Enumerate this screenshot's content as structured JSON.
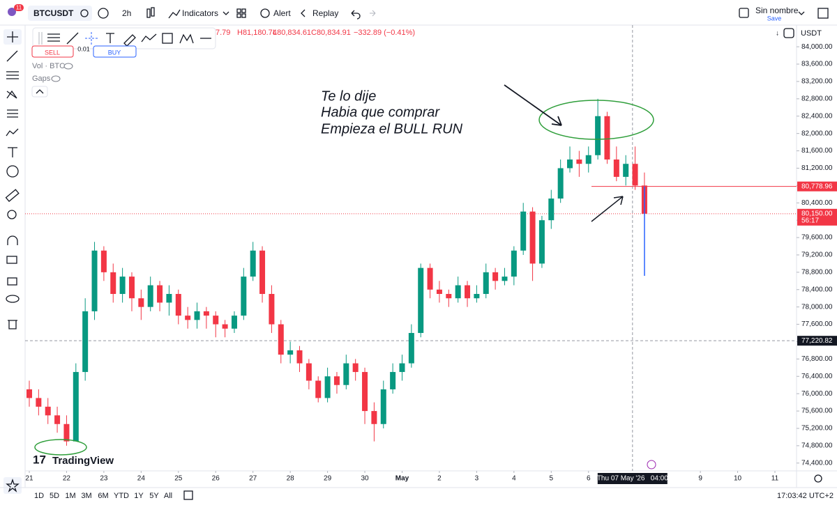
{
  "toolbar": {
    "badge": "11",
    "symbol": "BTCUSDT",
    "interval": "2h",
    "indicators": "Indicators",
    "alert": "Alert",
    "replay": "Replay",
    "layout_name": "Sin nombre",
    "save": "Save",
    "currency": "USDT"
  },
  "trade": {
    "sell": "SELL",
    "buy": "BUY",
    "qty": "0.01"
  },
  "legend": {
    "ohlc": "7.79",
    "high": "H81,180.74",
    "low": "L80,834.61",
    "close": "C80,834.91",
    "change": "−332.89 (−0.41%)",
    "volume": "Vol · BTC",
    "gaps": "Gaps"
  },
  "watermark": "TradingView",
  "chart_data": {
    "type": "candlestick",
    "annotations": [
      "Te lo dije",
      "Habia que comprar",
      "Empieza el BULL RUN"
    ],
    "x": [
      0,
      0.25,
      0.5,
      0.75,
      1,
      1.25,
      1.5,
      1.75,
      2,
      2.25,
      2.5,
      2.75,
      3,
      3.25,
      3.5,
      3.75,
      4,
      4.25,
      4.5,
      4.75,
      5,
      5.25,
      5.5,
      5.75,
      6,
      6.25,
      6.5,
      6.75,
      7,
      7.25,
      7.5,
      7.75,
      8,
      8.25,
      8.5,
      8.75,
      9,
      9.25,
      9.5,
      9.75,
      10,
      10.25,
      10.5,
      10.75,
      11,
      11.25,
      11.5,
      11.75,
      12,
      12.25,
      12.5,
      12.75,
      13,
      13.25,
      13.5,
      13.75,
      14,
      14.25,
      14.5,
      14.75,
      15,
      15.25,
      15.5,
      15.75,
      16,
      16.25,
      16.5
    ],
    "candles": [
      [
        76100,
        76300,
        75700,
        75900
      ],
      [
        75900,
        76100,
        75500,
        75700
      ],
      [
        75700,
        75900,
        75300,
        75500
      ],
      [
        75500,
        75700,
        75100,
        75300
      ],
      [
        75300,
        75500,
        74800,
        74900
      ],
      [
        74900,
        76700,
        74900,
        76500
      ],
      [
        76500,
        78200,
        76300,
        77900
      ],
      [
        77900,
        79500,
        77700,
        79300
      ],
      [
        79300,
        79400,
        78600,
        78800
      ],
      [
        78800,
        79000,
        78100,
        78300
      ],
      [
        78300,
        78900,
        78100,
        78700
      ],
      [
        78700,
        78800,
        77900,
        78200
      ],
      [
        78200,
        78400,
        77700,
        78000
      ],
      [
        78000,
        78700,
        77900,
        78500
      ],
      [
        78500,
        78600,
        77900,
        78100
      ],
      [
        78100,
        78500,
        77800,
        78300
      ],
      [
        78300,
        78400,
        77600,
        77800
      ],
      [
        77800,
        78000,
        77500,
        77700
      ],
      [
        77700,
        78100,
        77500,
        77900
      ],
      [
        77900,
        78000,
        77500,
        77800
      ],
      [
        77800,
        77900,
        77300,
        77600
      ],
      [
        77600,
        77700,
        77300,
        77500
      ],
      [
        77500,
        77900,
        77400,
        77800
      ],
      [
        77800,
        78900,
        77700,
        78700
      ],
      [
        78700,
        79500,
        78600,
        79300
      ],
      [
        79300,
        79400,
        78100,
        78300
      ],
      [
        78300,
        78500,
        77400,
        77600
      ],
      [
        77600,
        77700,
        76700,
        76900
      ],
      [
        76900,
        77200,
        76700,
        77000
      ],
      [
        77000,
        77100,
        76500,
        76700
      ],
      [
        76700,
        76800,
        76100,
        76300
      ],
      [
        76300,
        76400,
        75800,
        75900
      ],
      [
        75900,
        76600,
        75800,
        76400
      ],
      [
        76400,
        76500,
        76000,
        76200
      ],
      [
        76200,
        76900,
        76100,
        76700
      ],
      [
        76700,
        76800,
        76300,
        76500
      ],
      [
        76500,
        76600,
        75300,
        75600
      ],
      [
        75600,
        75800,
        74900,
        75300
      ],
      [
        75300,
        76300,
        75200,
        76100
      ],
      [
        76100,
        76700,
        76000,
        76500
      ],
      [
        76500,
        76900,
        76300,
        76700
      ],
      [
        76700,
        77600,
        76600,
        77400
      ],
      [
        77400,
        79000,
        77300,
        78900
      ],
      [
        78900,
        79000,
        78200,
        78400
      ],
      [
        78400,
        78600,
        78100,
        78300
      ],
      [
        78300,
        78400,
        78000,
        78200
      ],
      [
        78200,
        78700,
        78100,
        78500
      ],
      [
        78500,
        78600,
        78000,
        78200
      ],
      [
        78200,
        78500,
        78100,
        78300
      ],
      [
        78300,
        79000,
        78200,
        78800
      ],
      [
        78800,
        78900,
        78400,
        78600
      ],
      [
        78600,
        78900,
        78500,
        78700
      ],
      [
        78700,
        79400,
        78500,
        79300
      ],
      [
        79300,
        80400,
        79200,
        80200
      ],
      [
        80200,
        80300,
        78600,
        79000
      ],
      [
        79000,
        80100,
        78900,
        80000
      ],
      [
        80000,
        80700,
        79800,
        80500
      ],
      [
        80500,
        81400,
        80400,
        81200
      ],
      [
        81200,
        81700,
        81100,
        81400
      ],
      [
        81400,
        81600,
        81000,
        81300
      ],
      [
        81300,
        81700,
        81100,
        81500
      ],
      [
        81500,
        82800,
        81400,
        82400
      ],
      [
        82400,
        82500,
        81300,
        81400
      ],
      [
        81400,
        81700,
        80900,
        81000
      ],
      [
        81000,
        81500,
        80800,
        81300
      ],
      [
        81300,
        81700,
        80700,
        80800
      ],
      [
        80800,
        81100,
        80100,
        80150
      ]
    ],
    "up_color": "#089981",
    "down_color": "#f23645",
    "ylim": [
      74220,
      84500
    ],
    "yticks": [
      {
        "value": 74400,
        "label": "74,400.00"
      },
      {
        "value": 74800,
        "label": "74,800.00"
      },
      {
        "value": 75200,
        "label": "75,200.00"
      },
      {
        "value": 75600,
        "label": "75,600.00"
      },
      {
        "value": 76000,
        "label": "76,000.00"
      },
      {
        "value": 76400,
        "label": "76,400.00"
      },
      {
        "value": 76800,
        "label": "76,800.00"
      },
      {
        "value": 77200,
        "label": "77,200.00"
      },
      {
        "value": 77600,
        "label": "77,600.00"
      },
      {
        "value": 78000,
        "label": "78,000.00"
      },
      {
        "value": 78400,
        "label": "78,400.00"
      },
      {
        "value": 78800,
        "label": "78,800.00"
      },
      {
        "value": 79200,
        "label": "79,200.00"
      },
      {
        "value": 79600,
        "label": "79,600.00"
      },
      {
        "value": 80000,
        "label": "80,000.00"
      },
      {
        "value": 80400,
        "label": "80,400.00"
      },
      {
        "value": 80800,
        "label": "80,800.00"
      },
      {
        "value": 81200,
        "label": "81,200.00"
      },
      {
        "value": 81600,
        "label": "81,600.00"
      },
      {
        "value": 82000,
        "label": "82,000.00"
      },
      {
        "value": 82400,
        "label": "82,400.00"
      },
      {
        "value": 82800,
        "label": "82,800.00"
      },
      {
        "value": 83200,
        "label": "83,200.00"
      },
      {
        "value": 83600,
        "label": "83,600.00"
      },
      {
        "value": 84000,
        "label": "84,000.00"
      }
    ],
    "xlim": [
      -0.112,
      20.58
    ],
    "xticks": [
      {
        "value": 0,
        "label": "21"
      },
      {
        "value": 1,
        "label": "22"
      },
      {
        "value": 2,
        "label": "23"
      },
      {
        "value": 3,
        "label": "24"
      },
      {
        "value": 4,
        "label": "25"
      },
      {
        "value": 5,
        "label": "26"
      },
      {
        "value": 6,
        "label": "27"
      },
      {
        "value": 7,
        "label": "28"
      },
      {
        "value": 8,
        "label": "29"
      },
      {
        "value": 9,
        "label": "30"
      },
      {
        "value": 10,
        "label": "May"
      },
      {
        "value": 11,
        "label": "2"
      },
      {
        "value": 12,
        "label": "3"
      },
      {
        "value": 13,
        "label": "4"
      },
      {
        "value": 14,
        "label": "5"
      },
      {
        "value": 15,
        "label": "6"
      },
      {
        "value": 18,
        "label": "9"
      },
      {
        "value": 19,
        "label": "10"
      },
      {
        "value": 20,
        "label": "11"
      }
    ],
    "price_lines": [
      {
        "value": 80778.96,
        "label": "80,778.96",
        "color": "#f23645"
      },
      {
        "value": 80150,
        "label": "80,150.00",
        "sublabel": "56:17",
        "color": "#f23645"
      },
      {
        "value": 77220.82,
        "label": "77,220.82",
        "color": "#131722"
      }
    ],
    "crosshair": {
      "value": 16.18,
      "label": "Thu 07 May '26   04:00"
    }
  },
  "bottom_bar": {
    "ranges": [
      "1D",
      "5D",
      "1M",
      "3M",
      "6M",
      "YTD",
      "1Y",
      "5Y",
      "All"
    ],
    "clock": "17:03:42 UTC+2"
  }
}
